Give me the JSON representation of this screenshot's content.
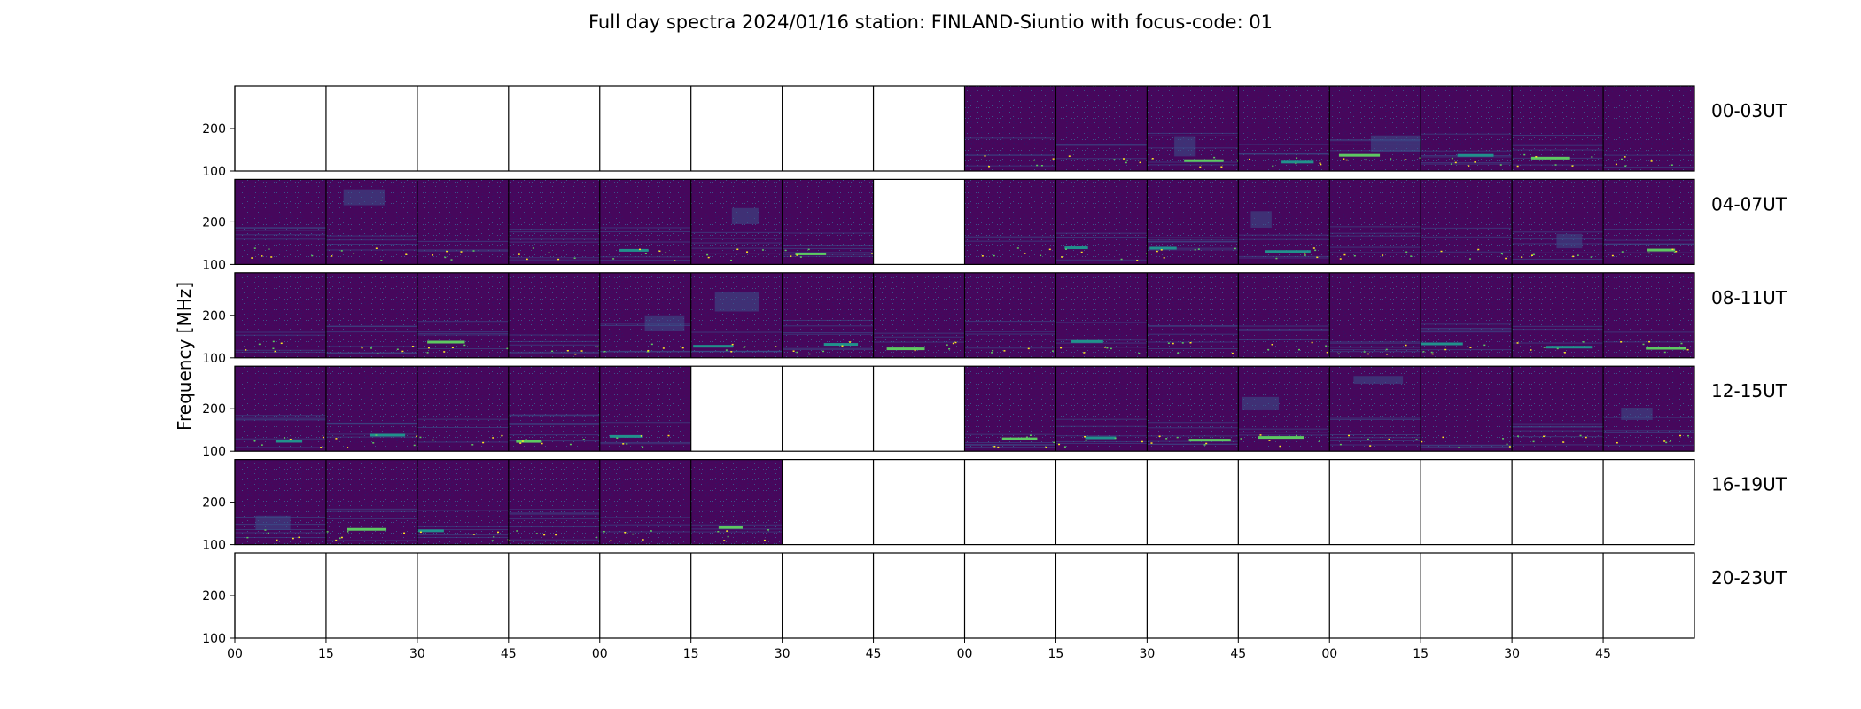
{
  "chart_data": {
    "type": "heatmap",
    "title": "Full day spectra 2024/01/16 station: FINLAND-Siuntio with focus-code: 01",
    "ylabel": "Frequency [MHz]",
    "xlabel": "",
    "ylim": [
      100,
      300
    ],
    "y_ticks": [
      100,
      200
    ],
    "x_tick_labels": [
      "00",
      "15",
      "30",
      "45",
      "00",
      "15",
      "30",
      "45",
      "00",
      "15",
      "30",
      "45",
      "00",
      "15",
      "30",
      "45"
    ],
    "panels_per_row": 16,
    "rows": [
      {
        "label": "00-03UT",
        "has_data": [
          0,
          0,
          0,
          0,
          0,
          0,
          0,
          0,
          1,
          1,
          1,
          1,
          1,
          1,
          1,
          1
        ]
      },
      {
        "label": "04-07UT",
        "has_data": [
          1,
          1,
          1,
          1,
          1,
          1,
          1,
          0,
          1,
          1,
          1,
          1,
          1,
          1,
          1,
          1
        ]
      },
      {
        "label": "08-11UT",
        "has_data": [
          1,
          1,
          1,
          1,
          1,
          1,
          1,
          1,
          1,
          1,
          1,
          1,
          1,
          1,
          1,
          1
        ]
      },
      {
        "label": "12-15UT",
        "has_data": [
          1,
          1,
          1,
          1,
          1,
          0,
          0,
          0,
          1,
          1,
          1,
          1,
          1,
          1,
          1,
          1
        ]
      },
      {
        "label": "16-19UT",
        "has_data": [
          1,
          1,
          1,
          1,
          1,
          1,
          0,
          0,
          0,
          0,
          0,
          0,
          0,
          0,
          0,
          0
        ]
      },
      {
        "label": "20-23UT",
        "has_data": [
          0,
          0,
          0,
          0,
          0,
          0,
          0,
          0,
          0,
          0,
          0,
          0,
          0,
          0,
          0,
          0
        ]
      }
    ],
    "colormap": [
      "#440154",
      "#3b528b",
      "#21918c",
      "#5ec962",
      "#fde725"
    ],
    "background_color": "#46075c",
    "grid": false
  }
}
